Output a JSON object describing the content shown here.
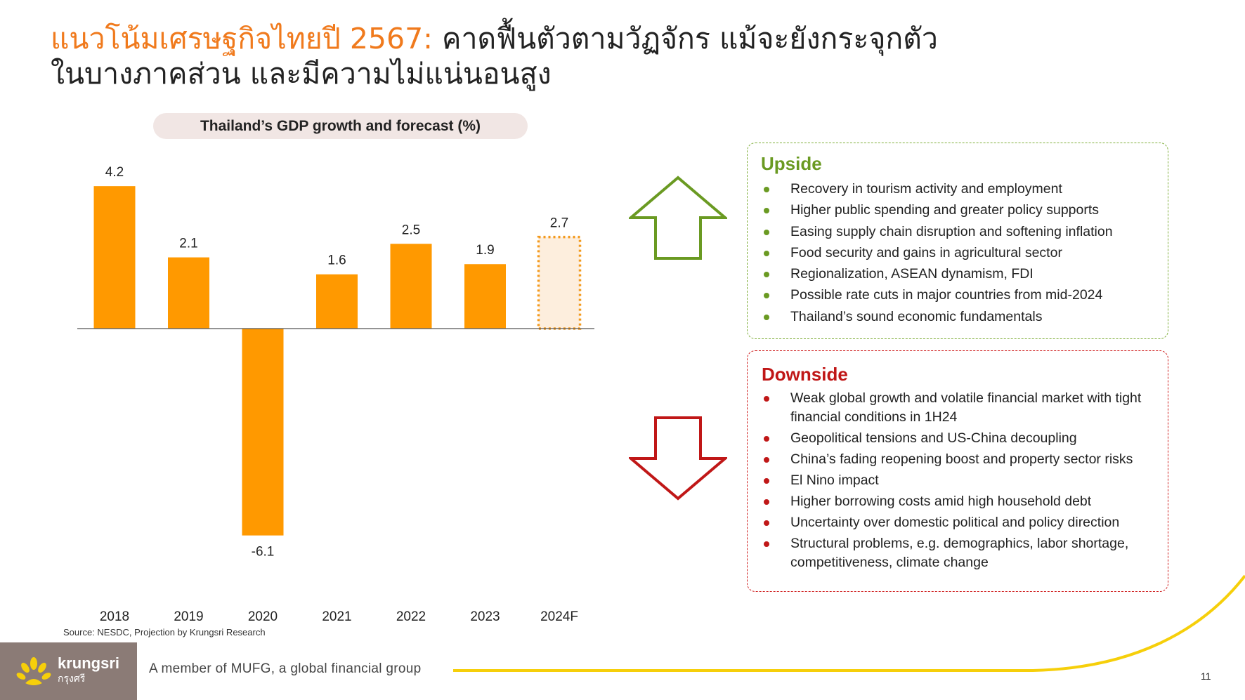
{
  "title": {
    "highlight": "แนวโน้มเศรษฐกิจไทยปี 2567:",
    "rest_line1": " คาดฟื้นตัวตามวัฏจักร แม้จะยังกระจุกตัว",
    "line2": "ในบางภาคส่วน และมีความไม่แน่นอนสูง"
  },
  "chart_data": {
    "type": "bar",
    "title": "Thailand’s GDP growth and forecast (%)",
    "categories": [
      "2018",
      "2019",
      "2020",
      "2021",
      "2022",
      "2023",
      "2024F"
    ],
    "values": [
      4.2,
      2.1,
      -6.1,
      1.6,
      2.5,
      1.9,
      2.7
    ],
    "value_labels": [
      "4.2",
      "2.1",
      "-6.1",
      "1.6",
      "2.5",
      "1.9",
      "2.7"
    ],
    "forecast": [
      false,
      false,
      false,
      false,
      false,
      false,
      true
    ],
    "xlabel": "",
    "ylabel": "",
    "ylim": [
      -6.5,
      4.5
    ],
    "grid": false,
    "colors": {
      "bar": "#ff9900",
      "forecast_fill": "#fdeedd",
      "forecast_border": "#f39a1e",
      "axis": "#555555"
    }
  },
  "source": "Source: NESDC, Projection by Krungsri Research",
  "upside": {
    "heading": "Upside",
    "items": [
      "Recovery in tourism activity and employment",
      "Higher public spending and greater policy supports",
      "Easing supply chain disruption and softening inflation",
      "Food security and gains in agricultural sector",
      "Regionalization, ASEAN dynamism, FDI",
      "Possible rate cuts in major countries from mid-2024",
      "Thailand’s sound economic fundamentals"
    ]
  },
  "downside": {
    "heading": "Downside",
    "items": [
      "Weak global growth and volatile financial market with tight financial conditions in 1H24",
      "Geopolitical tensions and US-China decoupling",
      "China’s fading reopening boost and property sector risks",
      "El Nino impact",
      "Higher borrowing costs amid high household debt",
      "Uncertainty over domestic political and policy direction",
      "Structural problems, e.g. demographics, labor shortage, competitiveness, climate change"
    ]
  },
  "arrows": {
    "up_icon": "up-arrow-icon",
    "down_icon": "down-arrow-icon",
    "up_color": "#6a9a22",
    "down_color": "#c01717"
  },
  "footer": {
    "logo_name": "krungsri",
    "logo_thai": "กรุงศรี",
    "tagline": "A member of MUFG, a global financial group",
    "page_number": "11",
    "brand_colors": {
      "logo_bg": "#8b7b76",
      "swoosh": "#f6cf0a"
    }
  }
}
